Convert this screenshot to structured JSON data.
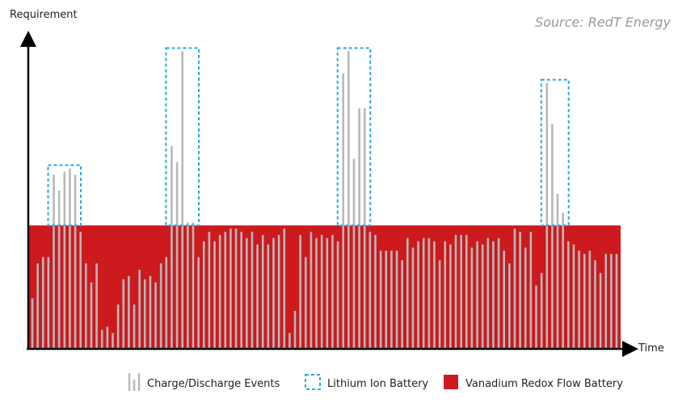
{
  "chart_data": {
    "type": "bar",
    "ylabel": "Requirement",
    "xlabel": "Time",
    "source": "Source: RedT Energy",
    "legend": [
      "Charge/Discharge Events",
      "Lithium Ion Battery",
      "Vanadium Redox Flow Battery"
    ],
    "ylim": [
      0,
      100
    ],
    "flow_battery_level": 39,
    "bar_color": "#b8b8b8",
    "box_color": "#2aa7e0",
    "flow_color": "#cc1a1e",
    "values": [
      16,
      27,
      29,
      29,
      55,
      50,
      56,
      57,
      55,
      37,
      27,
      21,
      27,
      6,
      7,
      5,
      14,
      22,
      23,
      14,
      25,
      22,
      23,
      21,
      27,
      29,
      64,
      59,
      94,
      40,
      40,
      29,
      34,
      37,
      34,
      36,
      37,
      38,
      38,
      37,
      35,
      37,
      33,
      36,
      33,
      35,
      36,
      38,
      5,
      12,
      36,
      29,
      37,
      35,
      36,
      35,
      36,
      34,
      87,
      94,
      60,
      76,
      76,
      37,
      36,
      31,
      31,
      31,
      31,
      28,
      35,
      32,
      34,
      35,
      35,
      34,
      28,
      34,
      33,
      36,
      36,
      36,
      32,
      34,
      33,
      35,
      34,
      35,
      31,
      27,
      38,
      37,
      32,
      37,
      20,
      24,
      84,
      71,
      49,
      43,
      34,
      33,
      31,
      30,
      31,
      28,
      24,
      30,
      30,
      30
    ]
  }
}
